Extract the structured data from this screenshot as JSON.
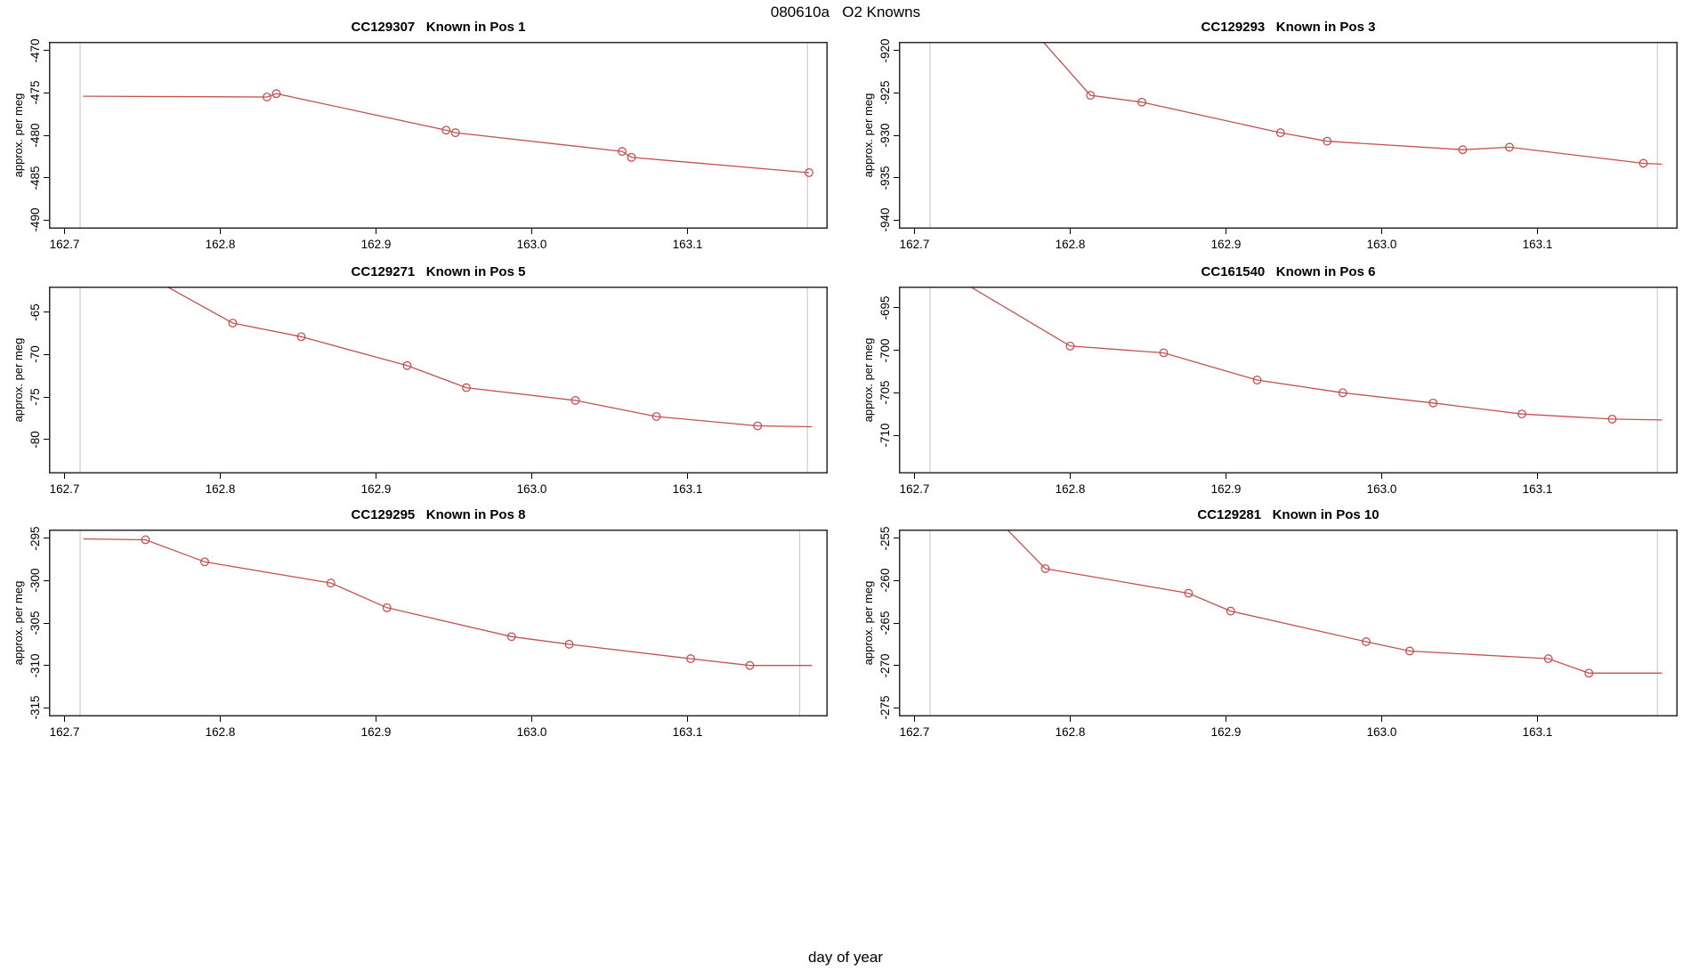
{
  "figure": {
    "title": "080610a   O2 Knowns",
    "xlabel": "day of year",
    "background": "#ffffff",
    "series_color": "#c3524f",
    "guide_line_color": "#cccccc",
    "axis_color": "#2b2b2b",
    "shared_ylabel": "approx. per meg"
  },
  "chart_data": [
    {
      "type": "line",
      "title": "CC129307   Known in Pos 1",
      "ylabel": "approx. per meg",
      "xlabel": "day of year",
      "xlim": [
        162.69,
        163.19
      ],
      "ylim": [
        -491,
        -469
      ],
      "x_ticks": [
        162.7,
        162.8,
        162.9,
        163.0,
        163.1
      ],
      "x_tick_labels": [
        "162.7",
        "162.8",
        "162.9",
        "163.0",
        "163.1"
      ],
      "y_ticks": [
        -490,
        -485,
        -480,
        -475,
        -470
      ],
      "y_tick_labels": [
        "-490",
        "-485",
        "-480",
        "-475",
        "-470"
      ],
      "guide_x": [
        162.71,
        163.177
      ],
      "grid": false,
      "legend": null,
      "line": [
        [
          162.712,
          -475.4
        ],
        [
          162.83,
          -475.5
        ],
        [
          162.836,
          -475.1
        ],
        [
          162.945,
          -479.4
        ],
        [
          162.951,
          -479.7
        ],
        [
          163.058,
          -481.9
        ],
        [
          163.064,
          -482.6
        ],
        [
          163.178,
          -484.4
        ]
      ],
      "markers": [
        [
          162.83,
          -475.5
        ],
        [
          162.836,
          -475.1
        ],
        [
          162.945,
          -479.4
        ],
        [
          162.951,
          -479.7
        ],
        [
          163.058,
          -481.9
        ],
        [
          163.064,
          -482.6
        ],
        [
          163.178,
          -484.4
        ]
      ]
    },
    {
      "type": "line",
      "title": "CC129293   Known in Pos 3",
      "ylabel": "approx. per meg",
      "xlabel": "day of year",
      "xlim": [
        162.69,
        163.19
      ],
      "ylim": [
        -941,
        -919
      ],
      "x_ticks": [
        162.7,
        162.8,
        162.9,
        163.0,
        163.1
      ],
      "x_tick_labels": [
        "162.7",
        "162.8",
        "162.9",
        "163.0",
        "163.1"
      ],
      "y_ticks": [
        -940,
        -935,
        -930,
        -925,
        -920
      ],
      "y_tick_labels": [
        "-940",
        "-935",
        "-930",
        "-925",
        "-920"
      ],
      "guide_x": [
        162.71,
        163.177
      ],
      "grid": false,
      "legend": null,
      "line": [
        [
          162.756,
          -913.5
        ],
        [
          162.813,
          -925.3
        ],
        [
          162.846,
          -926.1
        ],
        [
          162.935,
          -929.7
        ],
        [
          162.965,
          -930.7
        ],
        [
          163.052,
          -931.7
        ],
        [
          163.082,
          -931.4
        ],
        [
          163.168,
          -933.3
        ],
        [
          163.18,
          -933.4
        ]
      ],
      "markers": [
        [
          162.813,
          -925.3
        ],
        [
          162.846,
          -926.1
        ],
        [
          162.935,
          -929.7
        ],
        [
          162.965,
          -930.7
        ],
        [
          163.052,
          -931.7
        ],
        [
          163.082,
          -931.4
        ],
        [
          163.168,
          -933.3
        ]
      ]
    },
    {
      "type": "line",
      "title": "CC129271   Known in Pos 5",
      "ylabel": "approx. per meg",
      "xlabel": "day of year",
      "xlim": [
        162.69,
        163.19
      ],
      "ylim": [
        -84,
        -62
      ],
      "x_ticks": [
        162.7,
        162.8,
        162.9,
        163.0,
        163.1
      ],
      "x_tick_labels": [
        "162.7",
        "162.8",
        "162.9",
        "163.0",
        "163.1"
      ],
      "y_ticks": [
        -80,
        -75,
        -70,
        -65
      ],
      "y_tick_labels": [
        "-80",
        "-75",
        "-70",
        "-65"
      ],
      "guide_x": [
        162.71,
        163.177
      ],
      "grid": false,
      "legend": null,
      "line": [
        [
          162.744,
          -59.8
        ],
        [
          162.808,
          -66.3
        ],
        [
          162.852,
          -67.9
        ],
        [
          162.92,
          -71.3
        ],
        [
          162.958,
          -73.9
        ],
        [
          163.028,
          -75.4
        ],
        [
          163.08,
          -77.3
        ],
        [
          163.145,
          -78.4
        ],
        [
          163.18,
          -78.5
        ]
      ],
      "markers": [
        [
          162.808,
          -66.3
        ],
        [
          162.852,
          -67.9
        ],
        [
          162.92,
          -71.3
        ],
        [
          162.958,
          -73.9
        ],
        [
          163.028,
          -75.4
        ],
        [
          163.08,
          -77.3
        ],
        [
          163.145,
          -78.4
        ]
      ]
    },
    {
      "type": "line",
      "title": "CC161540   Known in Pos 6",
      "ylabel": "approx. per meg",
      "xlabel": "day of year",
      "xlim": [
        162.69,
        163.19
      ],
      "ylim": [
        -714.5,
        -692.5
      ],
      "x_ticks": [
        162.7,
        162.8,
        162.9,
        163.0,
        163.1
      ],
      "x_tick_labels": [
        "162.7",
        "162.8",
        "162.9",
        "163.0",
        "163.1"
      ],
      "y_ticks": [
        -710,
        -705,
        -700,
        -695
      ],
      "y_tick_labels": [
        "-710",
        "-705",
        "-700",
        "-695"
      ],
      "guide_x": [
        162.71,
        163.177
      ],
      "grid": false,
      "legend": null,
      "line": [
        [
          162.722,
          -691.0
        ],
        [
          162.8,
          -699.5
        ],
        [
          162.86,
          -700.3
        ],
        [
          162.92,
          -703.5
        ],
        [
          162.975,
          -705.0
        ],
        [
          163.033,
          -706.2
        ],
        [
          163.09,
          -707.5
        ],
        [
          163.148,
          -708.1
        ],
        [
          163.18,
          -708.2
        ]
      ],
      "markers": [
        [
          162.8,
          -699.5
        ],
        [
          162.86,
          -700.3
        ],
        [
          162.92,
          -703.5
        ],
        [
          162.975,
          -705.0
        ],
        [
          163.033,
          -706.2
        ],
        [
          163.09,
          -707.5
        ],
        [
          163.148,
          -708.1
        ]
      ]
    },
    {
      "type": "line",
      "title": "CC129295   Known in Pos 8",
      "ylabel": "approx. per meg",
      "xlabel": "day of year",
      "xlim": [
        162.69,
        163.19
      ],
      "ylim": [
        -316,
        -294
      ],
      "x_ticks": [
        162.7,
        162.8,
        162.9,
        163.0,
        163.1
      ],
      "x_tick_labels": [
        "162.7",
        "162.8",
        "162.9",
        "163.0",
        "163.1"
      ],
      "y_ticks": [
        -315,
        -310,
        -305,
        -300,
        -295
      ],
      "y_tick_labels": [
        "-315",
        "-310",
        "-305",
        "-300",
        "-295"
      ],
      "guide_x": [
        162.71,
        163.172
      ],
      "grid": false,
      "legend": null,
      "line": [
        [
          162.712,
          -295.1
        ],
        [
          162.752,
          -295.2
        ],
        [
          162.79,
          -297.8
        ],
        [
          162.871,
          -300.3
        ],
        [
          162.907,
          -303.2
        ],
        [
          162.987,
          -306.6
        ],
        [
          163.024,
          -307.5
        ],
        [
          163.102,
          -309.2
        ],
        [
          163.14,
          -310.0
        ],
        [
          163.18,
          -310.0
        ]
      ],
      "markers": [
        [
          162.752,
          -295.2
        ],
        [
          162.79,
          -297.8
        ],
        [
          162.871,
          -300.3
        ],
        [
          162.907,
          -303.2
        ],
        [
          162.987,
          -306.6
        ],
        [
          163.024,
          -307.5
        ],
        [
          163.102,
          -309.2
        ],
        [
          163.14,
          -310.0
        ]
      ]
    },
    {
      "type": "line",
      "title": "CC129281   Known in Pos 10",
      "ylabel": "approx. per meg",
      "xlabel": "day of year",
      "xlim": [
        162.69,
        163.19
      ],
      "ylim": [
        -276,
        -254
      ],
      "x_ticks": [
        162.7,
        162.8,
        162.9,
        163.0,
        163.1
      ],
      "x_tick_labels": [
        "162.7",
        "162.8",
        "162.9",
        "163.0",
        "163.1"
      ],
      "y_ticks": [
        -275,
        -270,
        -265,
        -260,
        -255
      ],
      "y_tick_labels": [
        "-275",
        "-270",
        "-265",
        "-260",
        "-255"
      ],
      "guide_x": [
        162.71,
        163.177
      ],
      "grid": false,
      "legend": null,
      "line": [
        [
          162.752,
          -252.6
        ],
        [
          162.784,
          -258.6
        ],
        [
          162.876,
          -261.5
        ],
        [
          162.903,
          -263.6
        ],
        [
          162.99,
          -267.2
        ],
        [
          163.018,
          -268.3
        ],
        [
          163.107,
          -269.2
        ],
        [
          163.133,
          -270.9
        ],
        [
          163.18,
          -270.9
        ]
      ],
      "markers": [
        [
          162.784,
          -258.6
        ],
        [
          162.876,
          -261.5
        ],
        [
          162.903,
          -263.6
        ],
        [
          162.99,
          -267.2
        ],
        [
          163.018,
          -268.3
        ],
        [
          163.107,
          -269.2
        ],
        [
          163.133,
          -270.9
        ]
      ]
    }
  ]
}
